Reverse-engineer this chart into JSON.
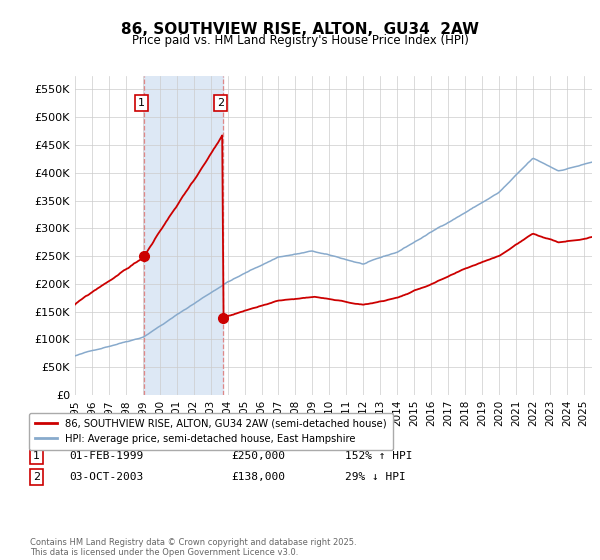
{
  "title": "86, SOUTHVIEW RISE, ALTON,  GU34  2AW",
  "subtitle": "Price paid vs. HM Land Registry's House Price Index (HPI)",
  "ylim": [
    0,
    575000
  ],
  "yticks": [
    0,
    50000,
    100000,
    150000,
    200000,
    250000,
    300000,
    350000,
    400000,
    450000,
    500000,
    550000
  ],
  "ytick_labels": [
    "£0",
    "£50K",
    "£100K",
    "£150K",
    "£200K",
    "£250K",
    "£300K",
    "£350K",
    "£400K",
    "£450K",
    "£500K",
    "£550K"
  ],
  "sale1_date_num": 1999.08,
  "sale1_price": 250000,
  "sale1_label": "1",
  "sale2_date_num": 2003.75,
  "sale2_price": 138000,
  "sale2_label": "2",
  "red_line_color": "#cc0000",
  "blue_line_color": "#88aacc",
  "vline_color": "#dd8888",
  "shade_color": "#dde8f5",
  "grid_color": "#cccccc",
  "background_color": "#ffffff",
  "legend_label_red": "86, SOUTHVIEW RISE, ALTON, GU34 2AW (semi-detached house)",
  "legend_label_blue": "HPI: Average price, semi-detached house, East Hampshire",
  "note1_num": "1",
  "note1_date": "01-FEB-1999",
  "note1_price": "£250,000",
  "note1_hpi": "152% ↑ HPI",
  "note2_num": "2",
  "note2_date": "03-OCT-2003",
  "note2_price": "£138,000",
  "note2_hpi": "29% ↓ HPI",
  "footer": "Contains HM Land Registry data © Crown copyright and database right 2025.\nThis data is licensed under the Open Government Licence v3.0.",
  "xmin": 1995.0,
  "xmax": 2025.5
}
